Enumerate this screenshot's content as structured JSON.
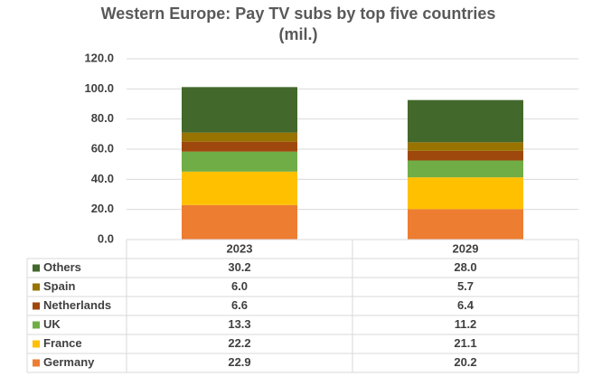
{
  "chart_data": {
    "type": "stacked-bar-table",
    "title": "Western Europe: Pay TV subs by top five countries",
    "subtitle": "(mil.)",
    "categories": [
      "2023",
      "2029"
    ],
    "series": [
      {
        "name": "Germany",
        "color": "#ed7d31",
        "values": [
          22.9,
          20.2
        ],
        "value_labels": [
          "22.9",
          "20.2"
        ]
      },
      {
        "name": "France",
        "color": "#ffc000",
        "values": [
          22.2,
          21.1
        ],
        "value_labels": [
          "22.2",
          "21.1"
        ]
      },
      {
        "name": "UK",
        "color": "#70ad47",
        "values": [
          13.3,
          11.2
        ],
        "value_labels": [
          "13.3",
          "11.2"
        ]
      },
      {
        "name": "Netherlands",
        "color": "#9e480e",
        "values": [
          6.6,
          6.4
        ],
        "value_labels": [
          "6.6",
          "6.4"
        ]
      },
      {
        "name": "Spain",
        "color": "#997300",
        "values": [
          6.0,
          5.7
        ],
        "value_labels": [
          "6.0",
          "5.7"
        ]
      },
      {
        "name": "Others",
        "color": "#43682b",
        "values": [
          30.2,
          28.0
        ],
        "value_labels": [
          "30.2",
          "28.0"
        ]
      }
    ],
    "ylim": [
      0,
      120
    ],
    "yticks": [
      {
        "value": 0,
        "label": "0.0"
      },
      {
        "value": 20,
        "label": "20.0"
      },
      {
        "value": 40,
        "label": "40.0"
      },
      {
        "value": 60,
        "label": "60.0"
      },
      {
        "value": 80,
        "label": "80.0"
      },
      {
        "value": 100,
        "label": "100.0"
      },
      {
        "value": 120,
        "label": "120.0"
      }
    ],
    "grid": true
  }
}
